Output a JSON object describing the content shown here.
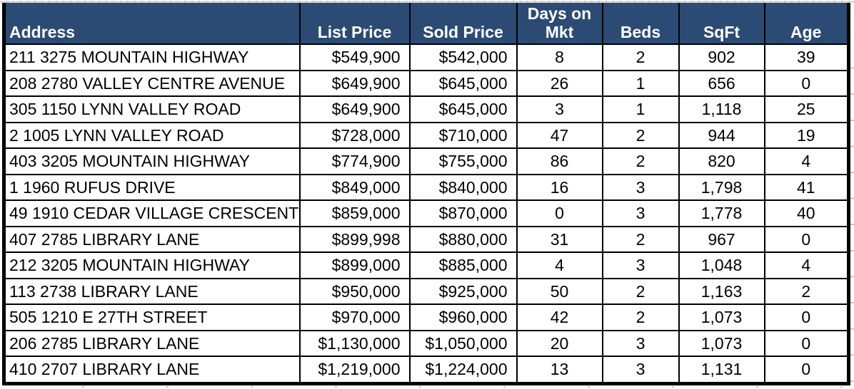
{
  "colors": {
    "header_bg": "#2B4B75",
    "header_text": "#FFFFFF",
    "cell_bg": "#FFFFFF",
    "cell_text": "#000000",
    "border": "#000000",
    "gridline_stub": "#C4C4C4"
  },
  "table": {
    "columns": [
      {
        "key": "address",
        "label": "Address"
      },
      {
        "key": "list_price",
        "label": "List Price"
      },
      {
        "key": "sold_price",
        "label": "Sold Price"
      },
      {
        "key": "days_on_mkt",
        "label": "Days on Mkt"
      },
      {
        "key": "beds",
        "label": "Beds"
      },
      {
        "key": "sqft",
        "label": "SqFt"
      },
      {
        "key": "age",
        "label": "Age"
      }
    ],
    "rows": [
      {
        "address": "211 3275 MOUNTAIN HIGHWAY",
        "list_price": "$549,900",
        "sold_price": "$542,000",
        "days_on_mkt": "8",
        "beds": "2",
        "sqft": "902",
        "age": "39"
      },
      {
        "address": "208 2780 VALLEY CENTRE AVENUE",
        "list_price": "$649,900",
        "sold_price": "$645,000",
        "days_on_mkt": "26",
        "beds": "1",
        "sqft": "656",
        "age": "0"
      },
      {
        "address": "305 1150 LYNN VALLEY ROAD",
        "list_price": "$649,900",
        "sold_price": "$645,000",
        "days_on_mkt": "3",
        "beds": "1",
        "sqft": "1,118",
        "age": "25"
      },
      {
        "address": "2 1005 LYNN VALLEY ROAD",
        "list_price": "$728,000",
        "sold_price": "$710,000",
        "days_on_mkt": "47",
        "beds": "2",
        "sqft": "944",
        "age": "19"
      },
      {
        "address": "403 3205 MOUNTAIN HIGHWAY",
        "list_price": "$774,900",
        "sold_price": "$755,000",
        "days_on_mkt": "86",
        "beds": "2",
        "sqft": "820",
        "age": "4"
      },
      {
        "address": "1 1960 RUFUS DRIVE",
        "list_price": "$849,000",
        "sold_price": "$840,000",
        "days_on_mkt": "16",
        "beds": "3",
        "sqft": "1,798",
        "age": "41"
      },
      {
        "address": "49 1910 CEDAR VILLAGE CRESCENT",
        "list_price": "$859,000",
        "sold_price": "$870,000",
        "days_on_mkt": "0",
        "beds": "3",
        "sqft": "1,778",
        "age": "40"
      },
      {
        "address": "407 2785 LIBRARY LANE",
        "list_price": "$899,998",
        "sold_price": "$880,000",
        "days_on_mkt": "31",
        "beds": "2",
        "sqft": "967",
        "age": "0"
      },
      {
        "address": "212 3205 MOUNTAIN HIGHWAY",
        "list_price": "$899,000",
        "sold_price": "$885,000",
        "days_on_mkt": "4",
        "beds": "3",
        "sqft": "1,048",
        "age": "4"
      },
      {
        "address": "113 2738 LIBRARY LANE",
        "list_price": "$950,000",
        "sold_price": "$925,000",
        "days_on_mkt": "50",
        "beds": "2",
        "sqft": "1,163",
        "age": "2"
      },
      {
        "address": "505 1210 E 27TH STREET",
        "list_price": "$970,000",
        "sold_price": "$960,000",
        "days_on_mkt": "42",
        "beds": "2",
        "sqft": "1,073",
        "age": "0"
      },
      {
        "address": "206 2785 LIBRARY LANE",
        "list_price": "$1,130,000",
        "sold_price": "$1,050,000",
        "days_on_mkt": "20",
        "beds": "3",
        "sqft": "1,073",
        "age": "0"
      },
      {
        "address": "410 2707 LIBRARY LANE",
        "list_price": "$1,219,000",
        "sold_price": "$1,224,000",
        "days_on_mkt": "13",
        "beds": "3",
        "sqft": "1,131",
        "age": "0"
      }
    ]
  }
}
